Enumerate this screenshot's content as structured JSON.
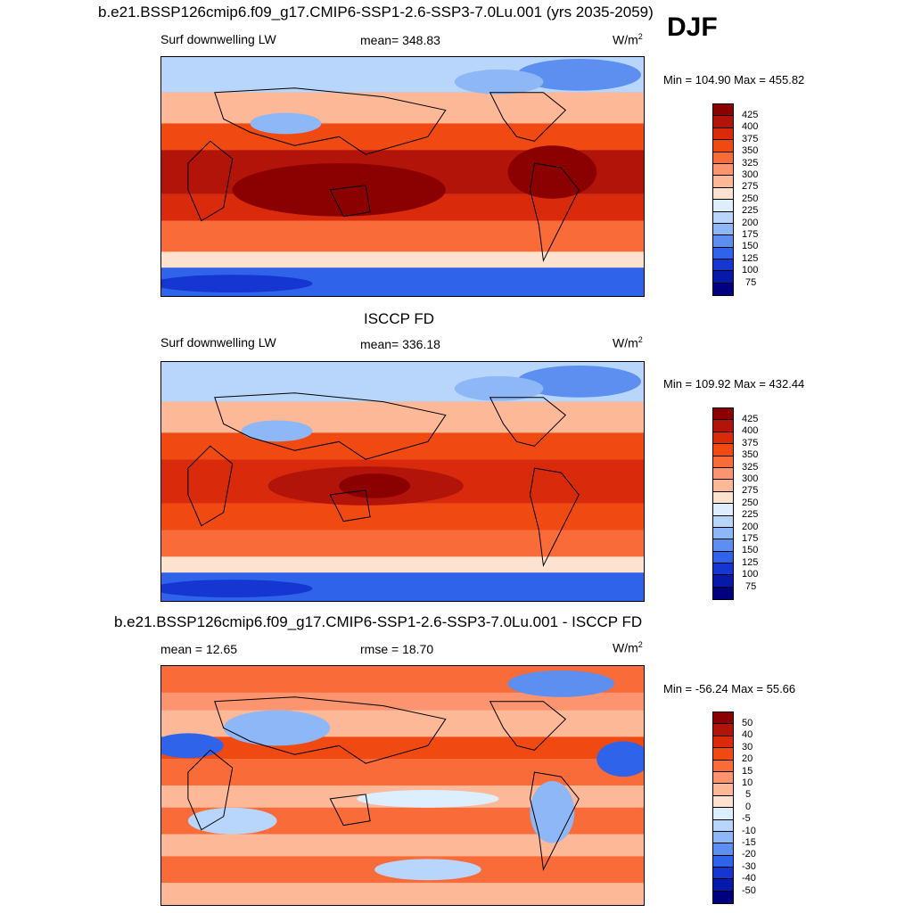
{
  "header": {
    "title": "b.e21.BSSP126cmip6.f09_g17.CMIP6-SSP1-2.6-SSP3-7.0Lu.001 (yrs 2035-2059)",
    "season": "DJF"
  },
  "panels": [
    {
      "title": "",
      "left_label": "Surf downwelling LW",
      "center_label": "mean= 348.83",
      "unit_base": "W/m",
      "unit_exp": "2",
      "minmax": "Min = 104.90 Max = 455.82"
    },
    {
      "title": "ISCCP FD",
      "left_label": "Surf downwelling LW",
      "center_label": "mean= 336.18",
      "unit_base": "W/m",
      "unit_exp": "2",
      "minmax": "Min = 109.92 Max = 432.44"
    },
    {
      "title": "b.e21.BSSP126cmip6.f09_g17.CMIP6-SSP1-2.6-SSP3-7.0Lu.001 - ISCCP FD",
      "left_label": "mean =  12.65",
      "center_label": "rmse =  18.70",
      "unit_base": "W/m",
      "unit_exp": "2",
      "minmax": "Min = -56.24 Max =  55.66"
    }
  ],
  "colorbars": {
    "absolute": {
      "ticks": [
        "425",
        "400",
        "375",
        "350",
        "325",
        "300",
        "275",
        "250",
        "225",
        "200",
        "175",
        "150",
        "125",
        "100",
        "75"
      ],
      "colors": [
        "#8b0000",
        "#b3140a",
        "#d92b0c",
        "#f04a12",
        "#fa6b3a",
        "#fc9470",
        "#fdb898",
        "#fde3cf",
        "#ddeeff",
        "#b8d6fb",
        "#8db7f7",
        "#5c8ff0",
        "#2f63ea",
        "#1536d0",
        "#0719a8",
        "#000080"
      ]
    },
    "difference": {
      "ticks": [
        "50",
        "40",
        "30",
        "20",
        "15",
        "10",
        "5",
        "0",
        "-5",
        "-10",
        "-15",
        "-20",
        "-30",
        "-40",
        "-50"
      ],
      "colors": [
        "#8b0000",
        "#b3140a",
        "#d92b0c",
        "#f04a12",
        "#fa6b3a",
        "#fc9470",
        "#fdb898",
        "#fde3cf",
        "#ddeeff",
        "#b8d6fb",
        "#8db7f7",
        "#5c8ff0",
        "#2f63ea",
        "#1536d0",
        "#0719a8",
        "#000080"
      ]
    }
  }
}
